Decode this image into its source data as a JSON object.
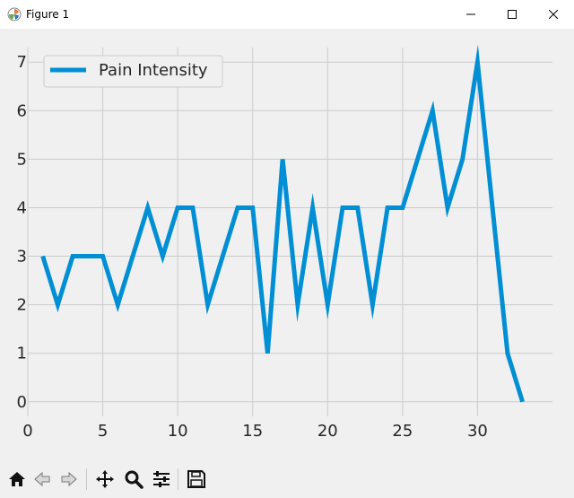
{
  "window": {
    "title": "Figure 1"
  },
  "toolbar": {
    "buttons": [
      "home-icon",
      "back-icon",
      "forward-icon",
      "pan-icon",
      "zoom-icon",
      "configure-subplots-icon",
      "save-icon"
    ]
  },
  "colors": {
    "line": "#008fd5",
    "axes_bg": "#f0f0f0",
    "grid": "#cbcbcb"
  },
  "chart_data": {
    "type": "line",
    "title": "",
    "xlabel": "",
    "ylabel": "",
    "xlim": [
      0,
      35
    ],
    "ylim": [
      -0.3,
      7.3
    ],
    "xticks": [
      0,
      5,
      10,
      15,
      20,
      25,
      30
    ],
    "yticks": [
      0,
      1,
      2,
      3,
      4,
      5,
      6,
      7
    ],
    "grid": true,
    "legend_position": "top-left",
    "series": [
      {
        "name": "Pain Intensity",
        "x": [
          1,
          2,
          3,
          4,
          5,
          6,
          7,
          8,
          9,
          10,
          11,
          12,
          13,
          14,
          15,
          16,
          17,
          18,
          19,
          20,
          21,
          22,
          23,
          24,
          25,
          26,
          27,
          28,
          29,
          30,
          31,
          32,
          33
        ],
        "values": [
          3,
          2,
          3,
          3,
          3,
          2,
          3,
          4,
          3,
          4,
          4,
          2,
          3,
          4,
          4,
          1,
          5,
          2,
          4,
          2,
          4,
          4,
          2,
          4,
          4,
          5,
          6,
          4,
          5,
          7,
          4,
          1,
          0
        ]
      }
    ]
  }
}
